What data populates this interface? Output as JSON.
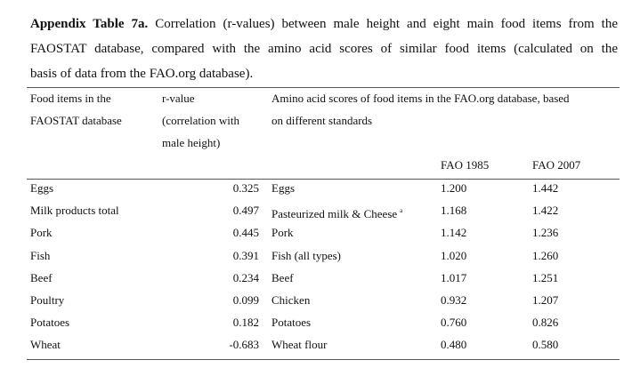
{
  "caption": {
    "label": "Appendix Table 7a.",
    "lines": [
      "Correlation (r-values) between male height and eight main food items from the",
      "FAOSTAT database, compared with the amino acid scores of similar food items (calculated on the",
      "basis of data from the FAO.org database)."
    ]
  },
  "table": {
    "header": {
      "food": [
        "Food items in the",
        "FAOSTAT database"
      ],
      "r_value": [
        "r-value",
        "(correlation with",
        "male height)"
      ],
      "amino": [
        "Amino acid scores of food items in the FAO.org database, based",
        "on different standards"
      ],
      "fao1985": "FAO 1985",
      "fao2007": "FAO 2007"
    },
    "rows": [
      {
        "food": "Eggs",
        "r": "0.325",
        "amino_food": "Eggs",
        "fao1985": "1.200",
        "fao2007": "1.442"
      },
      {
        "food": "Milk products total",
        "r": "0.497",
        "amino_food": "Pasteurized milk & Cheese",
        "note": "a",
        "fao1985": "1.168",
        "fao2007": "1.422"
      },
      {
        "food": "Pork",
        "r": "0.445",
        "amino_food": "Pork",
        "fao1985": "1.142",
        "fao2007": "1.236"
      },
      {
        "food": "Fish",
        "r": "0.391",
        "amino_food": "Fish (all types)",
        "fao1985": "1.020",
        "fao2007": "1.260"
      },
      {
        "food": "Beef",
        "r": "0.234",
        "amino_food": "Beef",
        "fao1985": "1.017",
        "fao2007": "1.251"
      },
      {
        "food": "Poultry",
        "r": "0.099",
        "amino_food": "Chicken",
        "fao1985": "0.932",
        "fao2007": "1.207"
      },
      {
        "food": "Potatoes",
        "r": "0.182",
        "amino_food": "Potatoes",
        "fao1985": "0.760",
        "fao2007": "0.826"
      },
      {
        "food": "Wheat",
        "r": "-0.683",
        "amino_food": "Wheat flour",
        "fao1985": "0.480",
        "fao2007": "0.580"
      }
    ]
  }
}
